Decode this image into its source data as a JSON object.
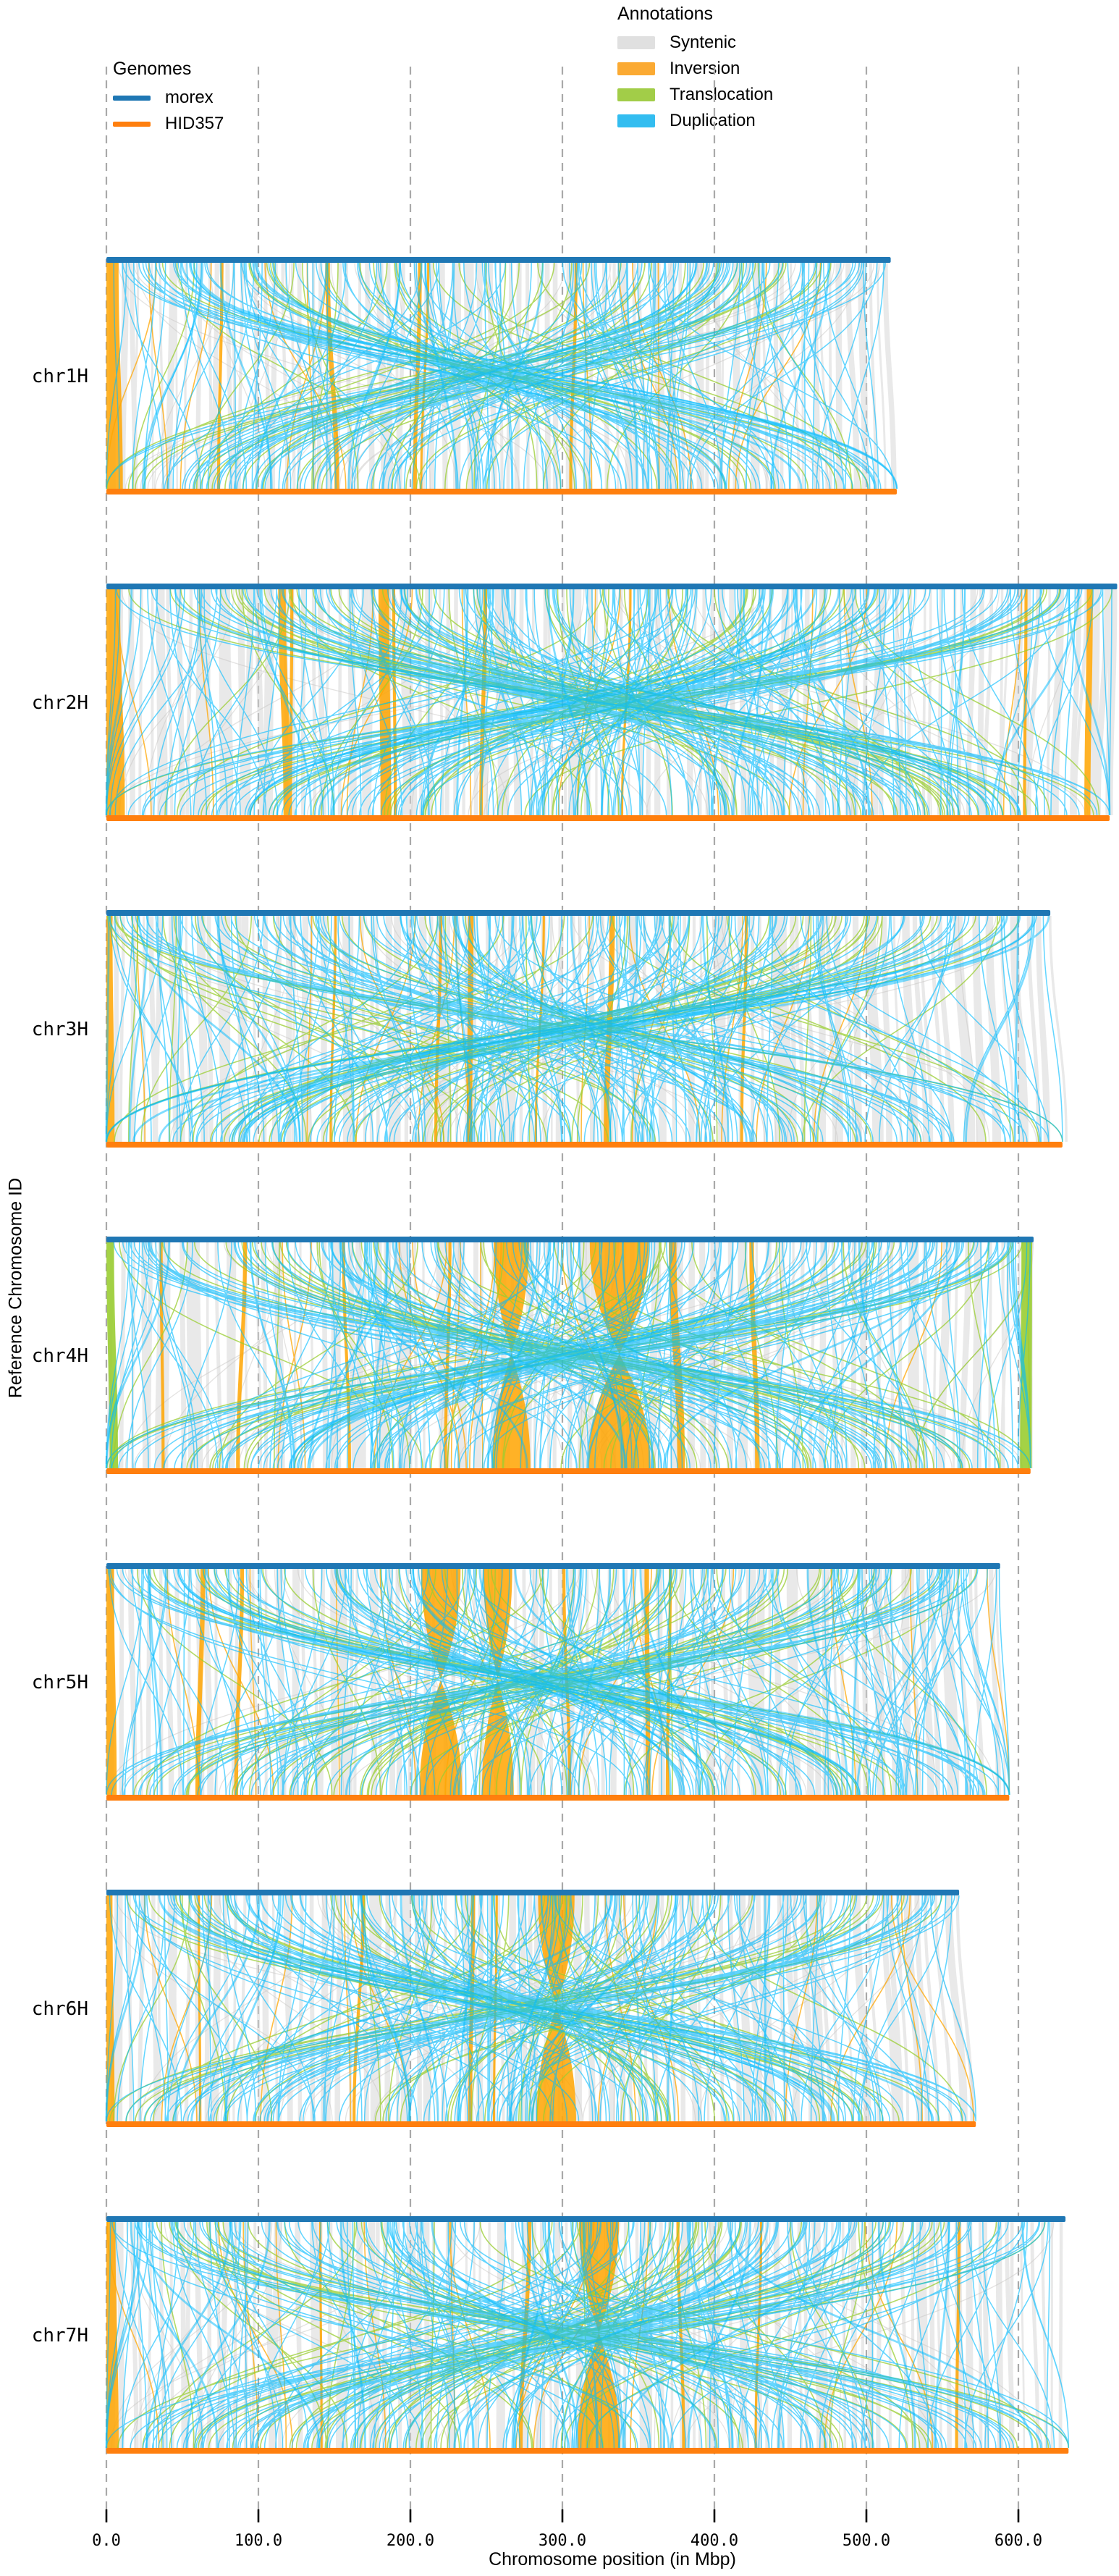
{
  "chart_data": {
    "type": "synteny-plot",
    "tool_style": "plotsr structural-rearrangement ribbon plot, reference genome bar on top and query genome bar below for each chromosome",
    "genomes_legend": {
      "title": "Genomes",
      "items": [
        {
          "label": "morex",
          "color": "#1f77b4"
        },
        {
          "label": "HID357",
          "color": "#ff7f0e"
        }
      ]
    },
    "annotations_legend": {
      "title": "Annotations",
      "items": [
        {
          "label": "Syntenic",
          "color": "#e0e0e0"
        },
        {
          "label": "Inversion",
          "color": "#fbaa33"
        },
        {
          "label": "Translocation",
          "color": "#a2cd48"
        },
        {
          "label": "Duplication",
          "color": "#33bdf0"
        }
      ]
    },
    "y_axis": {
      "label": "Reference Chromosome ID"
    },
    "x_axis": {
      "label": "Chromosome position (in Mbp)",
      "unit": "Mbp",
      "ticks": [
        {
          "value": 0,
          "label": "0.0"
        },
        {
          "value": 100,
          "label": "100.0"
        },
        {
          "value": 200,
          "label": "200.0"
        },
        {
          "value": 300,
          "label": "300.0"
        },
        {
          "value": 400,
          "label": "400.0"
        },
        {
          "value": 500,
          "label": "500.0"
        },
        {
          "value": 600,
          "label": "600.0"
        }
      ],
      "range_mbp": [
        0,
        660
      ]
    },
    "style": {
      "syntenic": "#d3d3d3",
      "inversion": "#ffa500",
      "translocation": "#9acd32",
      "duplication": "#00bbff",
      "ref_bar": "#1f77b4",
      "qry_bar": "#ff7f0e",
      "grid": "#a9a9a9",
      "tick": "#000000"
    },
    "chromosomes": [
      {
        "name": "chr1H",
        "ref_len_mbp": 516,
        "qry_len_mbp": 520,
        "seed": 101,
        "inversion_bowties": [],
        "inversion_blobs": [
          {
            "start": 0,
            "end": 8
          }
        ],
        "inversion_bands": [
          {
            "pos": 75,
            "w": 2
          },
          {
            "pos": 144,
            "w": 3
          },
          {
            "pos": 205,
            "w": 2.5
          },
          {
            "pos": 211,
            "w": 1.5
          },
          {
            "pos": 308,
            "w": 2
          }
        ],
        "translocation_bands": []
      },
      {
        "name": "chr2H",
        "ref_len_mbp": 665,
        "qry_len_mbp": 660,
        "seed": 202,
        "inversion_bowties": [],
        "inversion_blobs": [
          {
            "start": 0,
            "end": 9
          }
        ],
        "inversion_bands": [
          {
            "pos": 113,
            "w": 5
          },
          {
            "pos": 121,
            "w": 2
          },
          {
            "pos": 179,
            "w": 7
          },
          {
            "pos": 188,
            "w": 2
          },
          {
            "pos": 248,
            "w": 2.5
          },
          {
            "pos": 344,
            "w": 1.5
          },
          {
            "pos": 604,
            "w": 2
          },
          {
            "pos": 645,
            "w": 4
          }
        ],
        "translocation_bands": []
      },
      {
        "name": "chr3H",
        "ref_len_mbp": 621,
        "qry_len_mbp": 629,
        "seed": 303,
        "inversion_bowties": [],
        "inversion_blobs": [
          {
            "start": 0,
            "end": 4
          }
        ],
        "inversion_bands": [
          {
            "pos": 150,
            "w": 1.5
          },
          {
            "pos": 219,
            "w": 2
          },
          {
            "pos": 238,
            "w": 3.5
          },
          {
            "pos": 287,
            "w": 1.5
          },
          {
            "pos": 331,
            "w": 3.5
          },
          {
            "pos": 420,
            "w": 2
          }
        ],
        "translocation_bands": []
      },
      {
        "name": "chr4H",
        "ref_len_mbp": 610,
        "qry_len_mbp": 608,
        "seed": 404,
        "inversion_bowties": [
          {
            "start": 318,
            "end": 357
          },
          {
            "start": 255,
            "end": 278
          }
        ],
        "inversion_blobs": [],
        "inversion_bands": [
          {
            "pos": 35,
            "w": 2
          },
          {
            "pos": 90,
            "w": 2.5
          },
          {
            "pos": 155,
            "w": 2
          },
          {
            "pos": 225,
            "w": 2
          },
          {
            "pos": 370,
            "w": 5
          },
          {
            "pos": 423,
            "w": 3
          }
        ],
        "translocation_bands": [
          {
            "start": 0,
            "end": 5
          },
          {
            "start": 602,
            "end": 609
          }
        ]
      },
      {
        "name": "chr5H",
        "ref_len_mbp": 588,
        "qry_len_mbp": 594,
        "seed": 505,
        "inversion_bowties": [
          {
            "start": 207,
            "end": 233
          },
          {
            "start": 248,
            "end": 267
          }
        ],
        "inversion_blobs": [
          {
            "start": 0,
            "end": 5
          }
        ],
        "inversion_bands": [
          {
            "pos": 62,
            "w": 3
          },
          {
            "pos": 88,
            "w": 2.5
          },
          {
            "pos": 300,
            "w": 2
          },
          {
            "pos": 354,
            "w": 3
          },
          {
            "pos": 370,
            "w": 2
          }
        ],
        "translocation_bands": []
      },
      {
        "name": "chr6H",
        "ref_len_mbp": 561,
        "qry_len_mbp": 572,
        "seed": 606,
        "inversion_bowties": [
          {
            "start": 284,
            "end": 308
          }
        ],
        "inversion_blobs": [
          {
            "start": 0,
            "end": 4
          }
        ],
        "inversion_bands": [
          {
            "pos": 60,
            "w": 1.5
          },
          {
            "pos": 168,
            "w": 2
          },
          {
            "pos": 240,
            "w": 2.5
          },
          {
            "pos": 256,
            "w": 1.5
          }
        ],
        "translocation_bands": []
      },
      {
        "name": "chr7H",
        "ref_len_mbp": 631,
        "qry_len_mbp": 633,
        "seed": 707,
        "inversion_bowties": [
          {
            "start": 311,
            "end": 337
          }
        ],
        "inversion_blobs": [
          {
            "start": 0,
            "end": 6
          }
        ],
        "inversion_bands": [
          {
            "pos": 140,
            "w": 1.5
          },
          {
            "pos": 277,
            "w": 2.5
          },
          {
            "pos": 375,
            "w": 2
          },
          {
            "pos": 430,
            "w": 1.5
          },
          {
            "pos": 560,
            "w": 2
          }
        ],
        "translocation_bands": []
      }
    ]
  }
}
